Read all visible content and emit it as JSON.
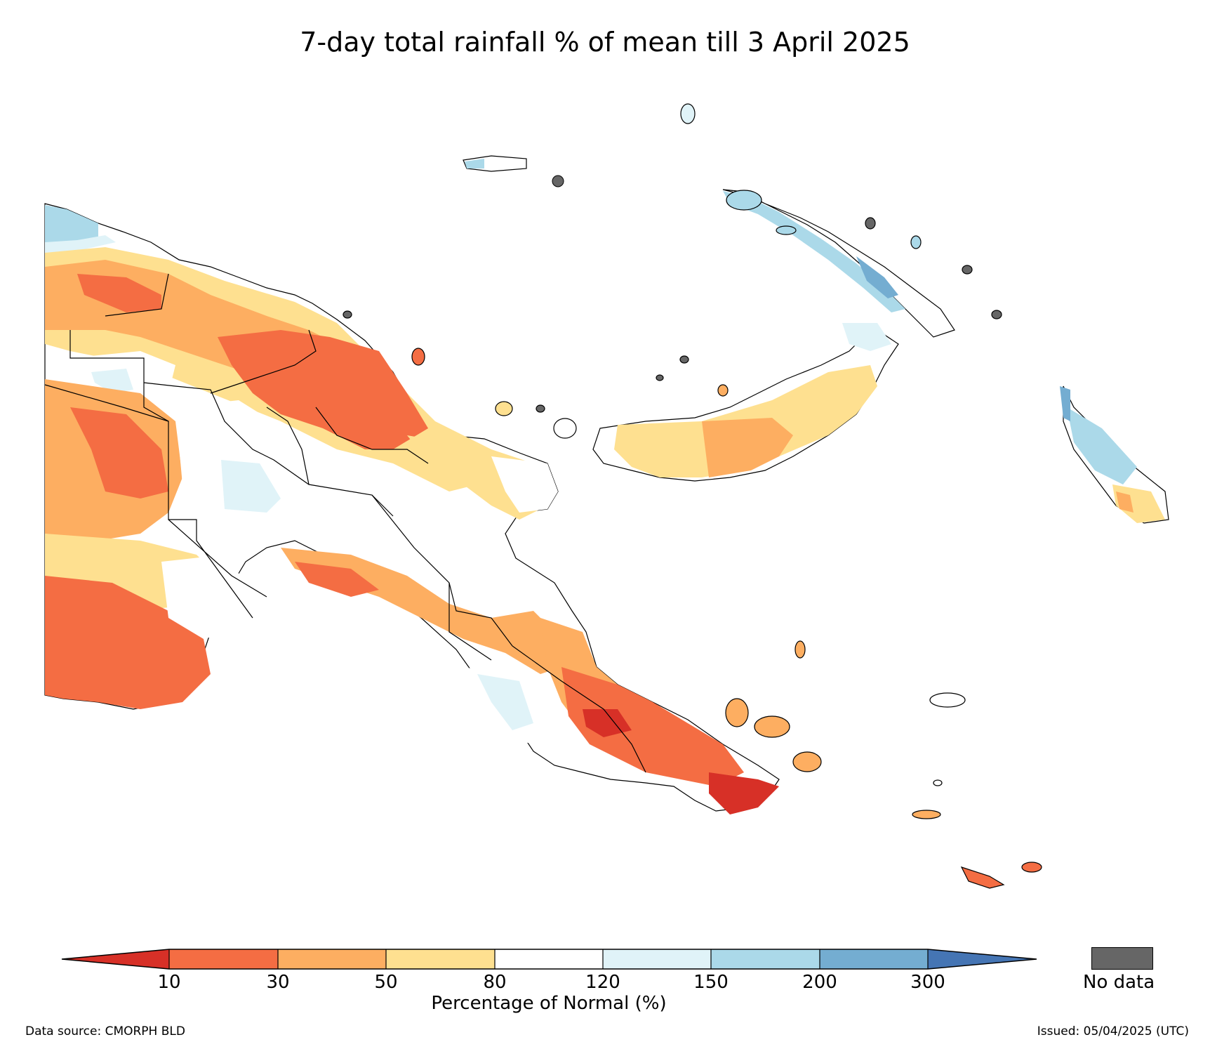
{
  "title": "7-day total rainfall % of mean till 3 April 2025",
  "colorbar": {
    "label": "Percentage of Normal (%)",
    "ticks": [
      "10",
      "30",
      "50",
      "80",
      "120",
      "150",
      "200",
      "300"
    ],
    "classes": [
      {
        "range": "<10",
        "color": "#d73027"
      },
      {
        "range": "10-30",
        "color": "#f46d43"
      },
      {
        "range": "30-50",
        "color": "#fdae61"
      },
      {
        "range": "50-80",
        "color": "#fee090"
      },
      {
        "range": "80-120",
        "color": "#ffffff"
      },
      {
        "range": "120-150",
        "color": "#e0f3f8"
      },
      {
        "range": "150-200",
        "color": "#abd9e9"
      },
      {
        "range": "200-300",
        "color": "#74add1"
      },
      {
        "range": ">300",
        "color": "#4575b4"
      }
    ],
    "no_data_label": "No data",
    "no_data_color": "#666666"
  },
  "footer": {
    "source": "Data source: CMORPH BLD",
    "issued": "Issued: 05/04/2025 (UTC)"
  }
}
